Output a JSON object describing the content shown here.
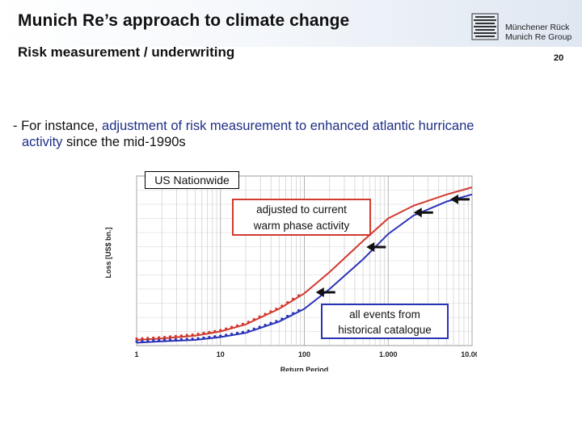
{
  "header": {
    "title": "Munich Re’s approach to climate change",
    "subtitle": "Risk measurement / underwriting",
    "page_number": "20",
    "logo_icon": "munich-re-logo-icon",
    "logo_text": [
      "Münchener Rück",
      "Munich Re Group"
    ]
  },
  "body": {
    "bullet_prefix": "- For instance, ",
    "bullet_highlight_1": "adjustment of risk measurement to enhanced atlantic hurricane",
    "bullet_highlight_2": "activity",
    "bullet_suffix": " since the mid-1990s"
  },
  "colors": {
    "highlight": "#1f2f86",
    "red": "#d23a2f",
    "blue": "#2a33b8"
  },
  "callouts": {
    "chart_label": "US Nationwide",
    "red_line1": "adjusted to current",
    "red_line2": "warm phase activity",
    "blue_line1": "all events from",
    "blue_line2": "historical catalogue"
  },
  "chart_data": {
    "type": "line",
    "xlabel": "Return Period",
    "ylabel": "Loss [US$ bn.]",
    "x_scale": "log",
    "xlim": [
      1,
      10000
    ],
    "x_ticks": [
      "1",
      "10",
      "100",
      "1.000",
      "10.000"
    ],
    "grid": true,
    "series": [
      {
        "name": "adjusted to current warm phase activity",
        "color": "red",
        "x": [
          1,
          2,
          5,
          10,
          20,
          50,
          100,
          200,
          500,
          1000,
          2000,
          5000,
          10000
        ],
        "y": [
          0.04,
          0.05,
          0.07,
          0.1,
          0.15,
          0.26,
          0.37,
          0.52,
          0.74,
          0.9,
          0.99,
          1.07,
          1.12
        ]
      },
      {
        "name": "all events from historical catalogue",
        "color": "blue",
        "x": [
          1,
          2,
          5,
          10,
          20,
          50,
          100,
          200,
          500,
          1000,
          2000,
          5000,
          10000
        ],
        "y": [
          0.02,
          0.03,
          0.04,
          0.06,
          0.09,
          0.17,
          0.26,
          0.4,
          0.61,
          0.79,
          0.92,
          1.02,
          1.07
        ]
      }
    ],
    "arrows_at_x": [
      150,
      600,
      2200,
      6000
    ]
  }
}
